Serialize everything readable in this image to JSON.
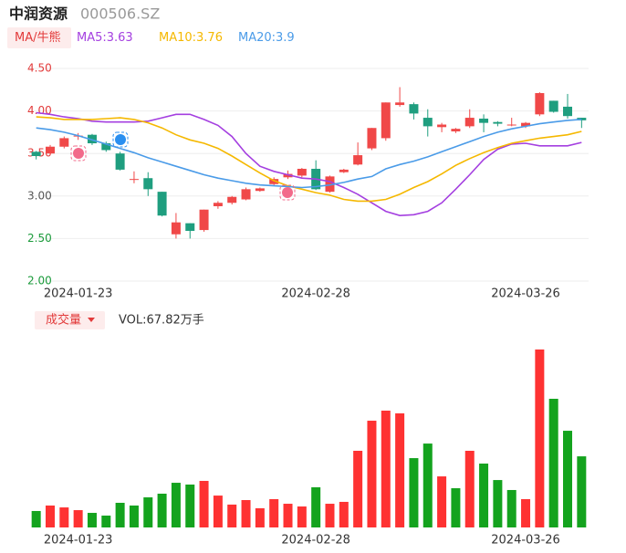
{
  "header": {
    "title": "中润资源",
    "code": "000506.SZ"
  },
  "chart_data": [
    {
      "type": "candlestick",
      "indicator_button": "MA/牛熊",
      "categories": [
        null,
        null,
        null,
        "2024-01-23",
        null,
        null,
        null,
        null,
        null,
        null,
        null,
        null,
        null,
        null,
        null,
        null,
        null,
        null,
        null,
        null,
        "2024-02-28",
        null,
        null,
        null,
        null,
        null,
        null,
        null,
        null,
        null,
        null,
        null,
        null,
        null,
        null,
        "2024-03-26",
        null,
        null,
        null,
        null
      ],
      "open": [
        3.52,
        3.5,
        3.58,
        3.7,
        3.72,
        3.62,
        3.5,
        3.2,
        3.21,
        3.05,
        2.55,
        2.68,
        2.6,
        2.88,
        2.92,
        2.96,
        3.06,
        3.14,
        3.22,
        3.24,
        3.32,
        3.05,
        3.28,
        3.37,
        3.56,
        3.68,
        4.07,
        4.08,
        3.92,
        3.81,
        3.76,
        3.82,
        3.91,
        3.87,
        3.83,
        3.82,
        3.96,
        4.12,
        4.05,
        3.92
      ],
      "high": [
        3.53,
        3.6,
        3.7,
        3.74,
        3.73,
        3.64,
        3.52,
        3.29,
        3.28,
        3.05,
        2.8,
        2.68,
        2.84,
        2.94,
        3.0,
        3.1,
        3.1,
        3.22,
        3.3,
        3.33,
        3.42,
        3.24,
        3.32,
        3.63,
        3.8,
        4.1,
        4.28,
        4.1,
        4.02,
        3.86,
        3.8,
        4.02,
        3.96,
        3.88,
        3.92,
        3.87,
        4.22,
        4.12,
        4.2,
        3.92
      ],
      "low": [
        3.43,
        3.48,
        3.56,
        3.66,
        3.6,
        3.52,
        3.3,
        3.15,
        3.0,
        2.76,
        2.5,
        2.5,
        2.58,
        2.85,
        2.9,
        2.95,
        3.05,
        3.12,
        3.2,
        3.22,
        3.07,
        3.04,
        3.27,
        3.36,
        3.54,
        3.65,
        4.05,
        3.9,
        3.7,
        3.75,
        3.74,
        3.8,
        3.75,
        3.82,
        3.82,
        3.8,
        3.94,
        3.98,
        3.91,
        3.8
      ],
      "close": [
        3.47,
        3.58,
        3.68,
        3.71,
        3.62,
        3.54,
        3.31,
        3.2,
        3.08,
        2.77,
        2.69,
        2.59,
        2.84,
        2.92,
        2.99,
        3.08,
        3.09,
        3.2,
        3.26,
        3.32,
        3.08,
        3.23,
        3.31,
        3.48,
        3.8,
        4.1,
        4.1,
        3.97,
        3.82,
        3.84,
        3.79,
        3.92,
        3.86,
        3.85,
        3.84,
        3.86,
        4.21,
        3.99,
        3.94,
        3.89
      ],
      "up_color": "#f04848",
      "down_color": "#1f9e7f",
      "series": [
        {
          "name": "MA5:3.63",
          "color": "#a43fe0",
          "values": [
            3.98,
            3.96,
            3.93,
            3.91,
            3.88,
            3.87,
            3.87,
            3.87,
            3.88,
            3.92,
            3.96,
            3.96,
            3.9,
            3.83,
            3.7,
            3.5,
            3.35,
            3.29,
            3.25,
            3.21,
            3.2,
            3.17,
            3.1,
            3.02,
            2.92,
            2.82,
            2.77,
            2.78,
            2.82,
            2.92,
            3.08,
            3.25,
            3.43,
            3.55,
            3.61,
            3.62,
            3.59,
            3.59,
            3.59,
            3.63
          ]
        },
        {
          "name": "MA10:3.76",
          "color": "#f5b800",
          "values": [
            3.93,
            3.92,
            3.9,
            3.9,
            3.9,
            3.91,
            3.92,
            3.9,
            3.86,
            3.8,
            3.72,
            3.66,
            3.62,
            3.56,
            3.47,
            3.37,
            3.27,
            3.18,
            3.12,
            3.08,
            3.04,
            3.01,
            2.96,
            2.94,
            2.94,
            2.96,
            3.02,
            3.1,
            3.17,
            3.26,
            3.36,
            3.44,
            3.51,
            3.57,
            3.62,
            3.65,
            3.68,
            3.7,
            3.72,
            3.76
          ]
        },
        {
          "name": "MA20:3.9",
          "color": "#4a9be8",
          "values": [
            3.8,
            3.78,
            3.75,
            3.71,
            3.66,
            3.61,
            3.56,
            3.51,
            3.45,
            3.4,
            3.35,
            3.3,
            3.25,
            3.21,
            3.18,
            3.15,
            3.13,
            3.12,
            3.11,
            3.1,
            3.11,
            3.13,
            3.16,
            3.2,
            3.23,
            3.32,
            3.37,
            3.41,
            3.46,
            3.52,
            3.58,
            3.64,
            3.7,
            3.75,
            3.79,
            3.82,
            3.85,
            3.87,
            3.89,
            3.9
          ]
        }
      ],
      "ylim": [
        2,
        4.5
      ],
      "yticks": [
        {
          "value": 4.5,
          "label": "4.50"
        },
        {
          "value": 4,
          "label": "4.00"
        },
        {
          "value": 3.5,
          "label": "3.50"
        },
        {
          "value": 3,
          "label": "3.00"
        },
        {
          "value": 2.5,
          "label": "2.50"
        },
        {
          "value": 2,
          "label": "2.00"
        }
      ],
      "ytick_colors": [
        "#e23a3a",
        "#e23a3a",
        "#e23a3a",
        "#555555",
        "#1a9a3a",
        "#1a9a3a"
      ],
      "grid": true
    },
    {
      "type": "volume",
      "indicator_button": "成交量",
      "label": "VOL:67.82万手",
      "categories": [
        null,
        null,
        null,
        "2024-01-23",
        null,
        null,
        null,
        null,
        null,
        null,
        null,
        null,
        null,
        null,
        null,
        null,
        null,
        null,
        null,
        null,
        "2024-02-28",
        null,
        null,
        null,
        null,
        null,
        null,
        null,
        null,
        null,
        null,
        null,
        null,
        null,
        null,
        "2024-03-26",
        null,
        null,
        null,
        null
      ],
      "values": [
        15.7,
        20.9,
        19.1,
        16.5,
        13.9,
        11.3,
        23.5,
        20.9,
        28.7,
        32.2,
        42.6,
        40.9,
        44.4,
        30.4,
        21.8,
        26.1,
        18.3,
        27.0,
        22.6,
        20.0,
        38.3,
        22.6,
        24.4,
        73.1,
        101.8,
        111.4,
        108.8,
        66.1,
        80.0,
        48.7,
        37.4,
        73.1,
        60.9,
        45.2,
        35.7,
        27.0,
        169.7,
        122.7,
        92.2,
        67.82
      ],
      "up_color": "#fe3232",
      "down_color": "#14a31e"
    }
  ]
}
